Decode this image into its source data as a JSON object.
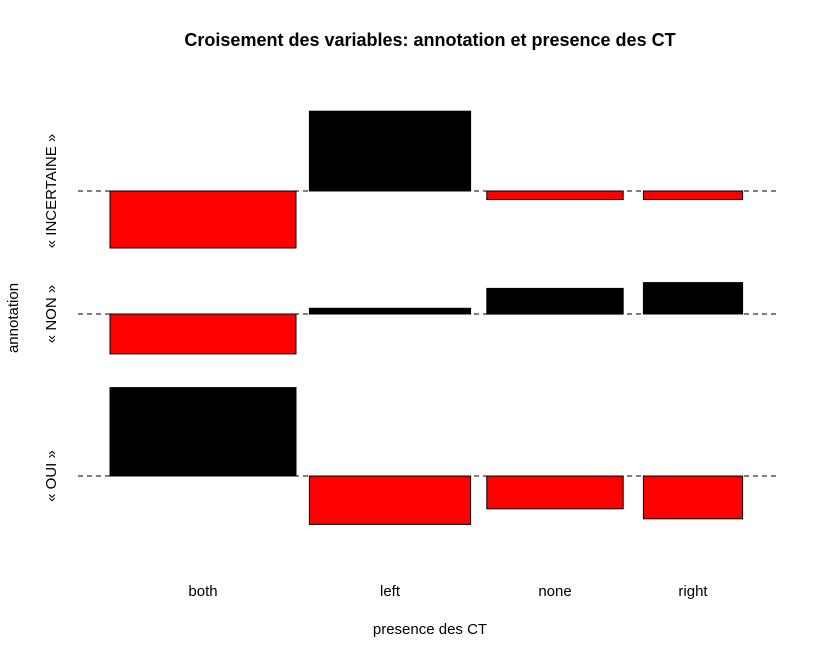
{
  "chart_data": {
    "type": "bar",
    "title": "Croisement des variables: annotation et presence des CT",
    "xlabel": "presence des CT",
    "ylabel": "annotation",
    "columns": [
      "both",
      "left",
      "none",
      "right"
    ],
    "rows": [
      "« OUI »",
      "« NON »",
      "« INCERTAINE »"
    ],
    "column_widths": [
      0.3,
      0.26,
      0.22,
      0.16
    ],
    "residuals": [
      {
        "row": "« OUI »",
        "values": [
          3.1,
          -1.7,
          -1.15,
          -1.5
        ]
      },
      {
        "row": "« NON »",
        "values": [
          -1.4,
          0.2,
          0.9,
          1.1
        ]
      },
      {
        "row": "« INCERTAINE »",
        "values": [
          -2.0,
          2.8,
          -0.3,
          -0.3
        ]
      }
    ],
    "positive_color": "#000000",
    "negative_color": "#ff0000",
    "baseline_style": "dashed"
  }
}
